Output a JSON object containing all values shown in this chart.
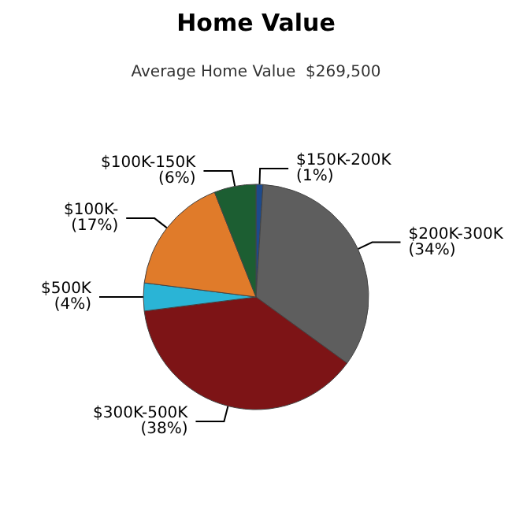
{
  "chart_data": {
    "type": "pie",
    "title": "Home Value",
    "subtitle": "Average Home Value  $269,500",
    "categories": [
      "$150K-200K",
      "$200K-300K",
      "$300K-500K",
      "$500K",
      "$100K-",
      "$100K-150K"
    ],
    "values": [
      1,
      34,
      38,
      4,
      17,
      6
    ],
    "value_labels": [
      "(1%)",
      "(34%)",
      "(38%)",
      "(4%)",
      "(17%)",
      "(6%)"
    ],
    "colors": [
      "#1d4a8c",
      "#5e5e5e",
      "#7d1416",
      "#2ab4d6",
      "#e07b2a",
      "#1c5e32"
    ],
    "legend": false
  }
}
